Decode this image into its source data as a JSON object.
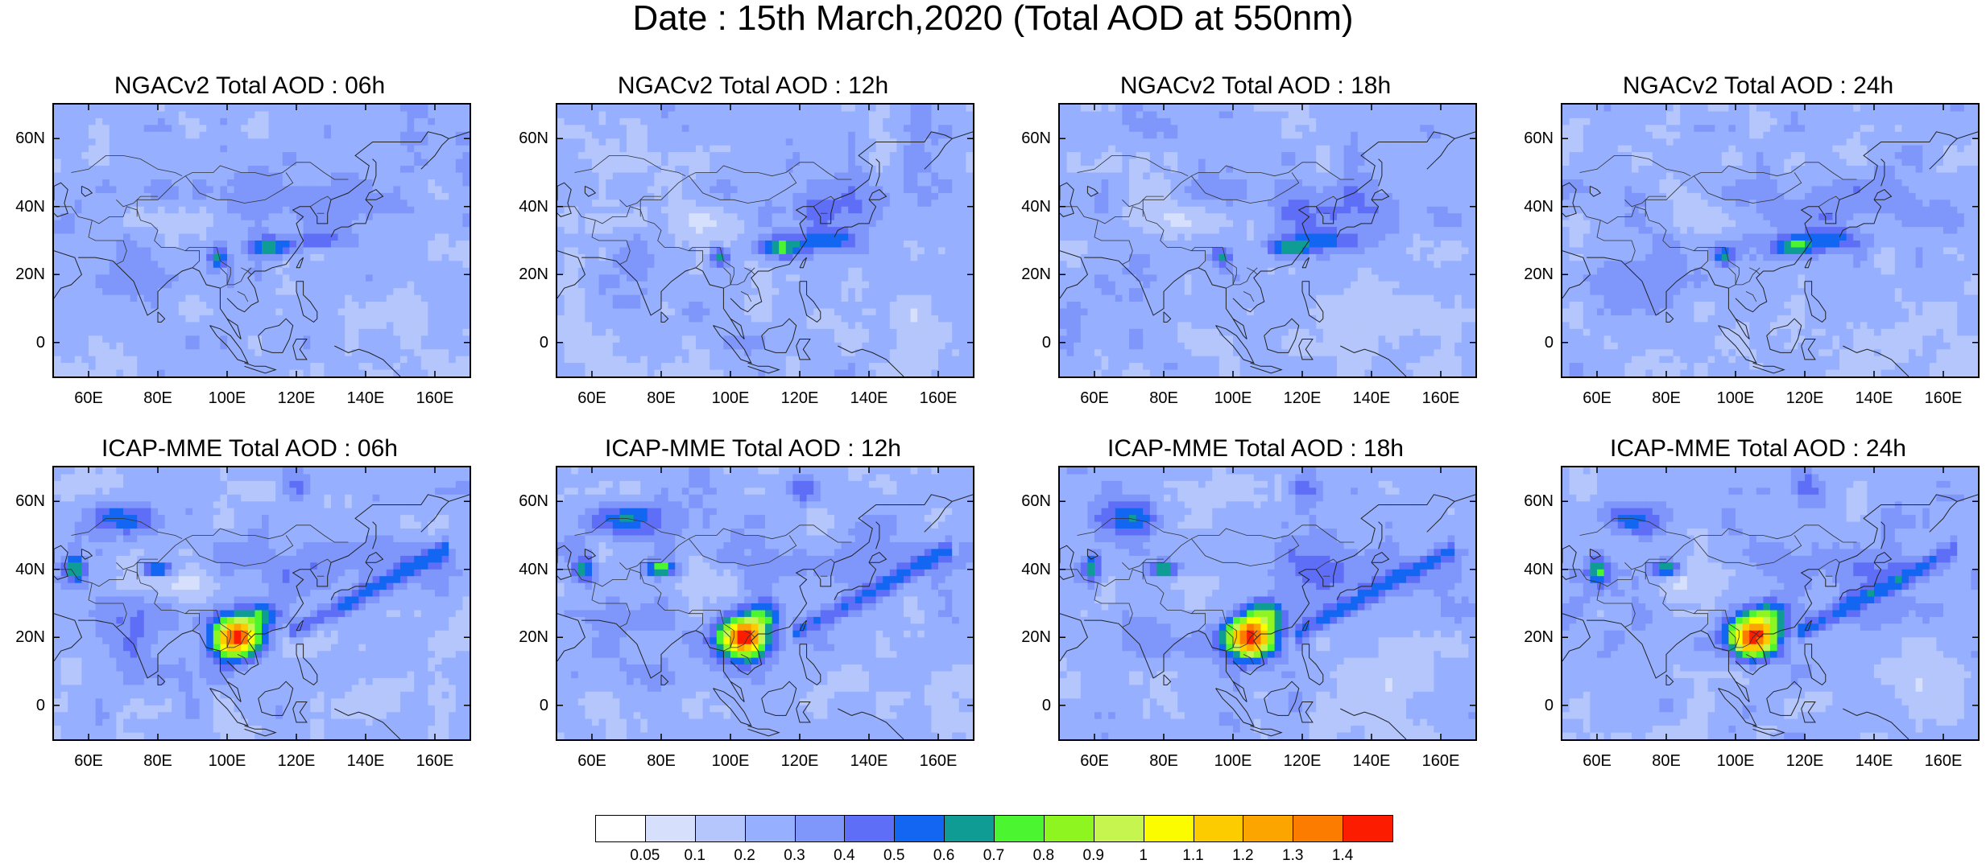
{
  "main_title": "Date : 15th March,2020 (Total AOD at 550nm)",
  "lat_labels": [
    "60N",
    "40N",
    "20N",
    "0"
  ],
  "lon_labels": [
    "60E",
    "80E",
    "100E",
    "120E",
    "140E",
    "160E"
  ],
  "panels": [
    {
      "title": "NGACv2 Total AOD : 06h",
      "model": "NGACv2",
      "hour": "06h"
    },
    {
      "title": "NGACv2 Total AOD : 12h",
      "model": "NGACv2",
      "hour": "12h"
    },
    {
      "title": "NGACv2 Total AOD : 18h",
      "model": "NGACv2",
      "hour": "18h"
    },
    {
      "title": "NGACv2 Total AOD : 24h",
      "model": "NGACv2",
      "hour": "24h"
    },
    {
      "title": "ICAP-MME Total AOD : 06h",
      "model": "ICAP-MME",
      "hour": "06h"
    },
    {
      "title": "ICAP-MME Total AOD : 12h",
      "model": "ICAP-MME",
      "hour": "12h"
    },
    {
      "title": "ICAP-MME Total AOD : 18h",
      "model": "ICAP-MME",
      "hour": "18h"
    },
    {
      "title": "ICAP-MME Total AOD : 24h",
      "model": "ICAP-MME",
      "hour": "24h"
    }
  ],
  "colorbar": {
    "labels": [
      "0.05",
      "0.1",
      "0.2",
      "0.3",
      "0.4",
      "0.5",
      "0.6",
      "0.7",
      "0.8",
      "0.9",
      "1",
      "1.1",
      "1.2",
      "1.3",
      "1.4"
    ],
    "colors": [
      "#ffffff",
      "#d6e0fd",
      "#b4c6fb",
      "#97afff",
      "#7f96fb",
      "#5f6ef6",
      "#1266f2",
      "#0f9c94",
      "#4bf530",
      "#8ef520",
      "#c6f550",
      "#fcfc00",
      "#fccc00",
      "#fca400",
      "#fc7c00",
      "#fc1c00"
    ]
  }
}
